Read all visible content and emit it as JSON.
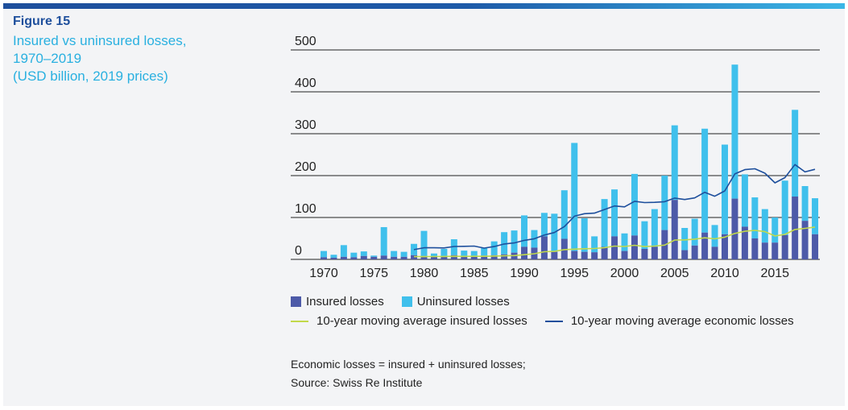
{
  "figure": {
    "label": "Figure 15",
    "title_lines": [
      "Insured vs uninsured losses,",
      "1970–2019",
      "(USD billion, 2019 prices)"
    ]
  },
  "legend": {
    "insured": "Insured losses",
    "uninsured": "Uninsured losses",
    "ma_insured": "10-year moving average insured losses",
    "ma_economic": "10-year moving average economic losses"
  },
  "notes": {
    "line1": "Economic losses = insured + uninsured losses;",
    "line2": "Source: Swiss Re Institute"
  },
  "colors": {
    "insured": "#4d5aa8",
    "uninsured": "#40c0ec",
    "ma_insured": "#c2d94a",
    "ma_economic": "#1e4f9c",
    "grid": "#222222",
    "title": "#29b0e0",
    "figure_label": "#1e4f9c"
  },
  "chart_data": {
    "type": "bar",
    "stacked": true,
    "y_range": [
      0,
      500
    ],
    "y_ticks": [
      0,
      100,
      200,
      300,
      400,
      500
    ],
    "x_tick_labels": [
      "1970",
      "1975",
      "1980",
      "1985",
      "1990",
      "1995",
      "2000",
      "2005",
      "2010",
      "2015"
    ],
    "grid": true,
    "legend_position": "bottom",
    "categories": [
      1970,
      1971,
      1972,
      1973,
      1974,
      1975,
      1976,
      1977,
      1978,
      1979,
      1980,
      1981,
      1982,
      1983,
      1984,
      1985,
      1986,
      1987,
      1988,
      1989,
      1990,
      1991,
      1992,
      1993,
      1994,
      1995,
      1996,
      1997,
      1998,
      1999,
      2000,
      2001,
      2002,
      2003,
      2004,
      2005,
      2006,
      2007,
      2008,
      2009,
      2010,
      2011,
      2012,
      2013,
      2014,
      2015,
      2016,
      2017,
      2018,
      2019
    ],
    "series": [
      {
        "name": "Insured losses",
        "kind": "bar",
        "values": [
          5,
          4,
          6,
          5,
          8,
          6,
          9,
          6,
          6,
          10,
          8,
          6,
          7,
          10,
          7,
          8,
          9,
          10,
          12,
          16,
          30,
          28,
          55,
          18,
          49,
          20,
          18,
          17,
          30,
          55,
          20,
          57,
          25,
          30,
          70,
          142,
          22,
          33,
          64,
          30,
          60,
          145,
          78,
          50,
          40,
          40,
          58,
          150,
          92,
          60
        ]
      },
      {
        "name": "Uninsured losses",
        "kind": "bar",
        "values": [
          15,
          7,
          28,
          11,
          11,
          3,
          68,
          14,
          12,
          27,
          60,
          8,
          18,
          38,
          14,
          12,
          18,
          33,
          53,
          53,
          75,
          42,
          56,
          91,
          116,
          258,
          80,
          38,
          114,
          112,
          42,
          147,
          66,
          90,
          130,
          178,
          53,
          64,
          248,
          52,
          214,
          320,
          125,
          98,
          80,
          60,
          130,
          207,
          83,
          86
        ]
      },
      {
        "name": "10-year moving average insured losses",
        "kind": "line",
        "values": [
          null,
          null,
          null,
          null,
          null,
          null,
          null,
          null,
          null,
          6.5,
          6.6,
          6.8,
          6.9,
          7.3,
          7.2,
          7.4,
          7.4,
          7.8,
          8.4,
          9.0,
          11.2,
          13.4,
          18.2,
          19.0,
          23.2,
          24.4,
          25.3,
          26.0,
          27.8,
          31.7,
          30.7,
          33.6,
          30.6,
          31.8,
          34.0,
          46.2,
          46.6,
          48.2,
          51.6,
          49.1,
          53.1,
          61.9,
          67.2,
          69.2,
          66.2,
          56.0,
          59.6,
          71.3,
          74.1,
          77.1
        ]
      },
      {
        "name": "10-year moving average economic losses",
        "kind": "line",
        "values": [
          null,
          null,
          null,
          null,
          null,
          null,
          null,
          null,
          null,
          23.3,
          27.6,
          27.7,
          27.4,
          30.8,
          31.1,
          31.8,
          26.9,
          30.6,
          36.7,
          39.3,
          45.3,
          49.2,
          58.0,
          64.0,
          78.2,
          103.0,
          109.1,
          110.3,
          119.1,
          127.5,
          125.4,
          138.6,
          135.6,
          136.1,
          137.6,
          146.4,
          142.9,
          146.8,
          160.2,
          150.7,
          163.4,
          204.1,
          214.3,
          216.4,
          205.7,
          182.7,
          195.2,
          226.4,
          208.9,
          215.0
        ]
      }
    ]
  }
}
